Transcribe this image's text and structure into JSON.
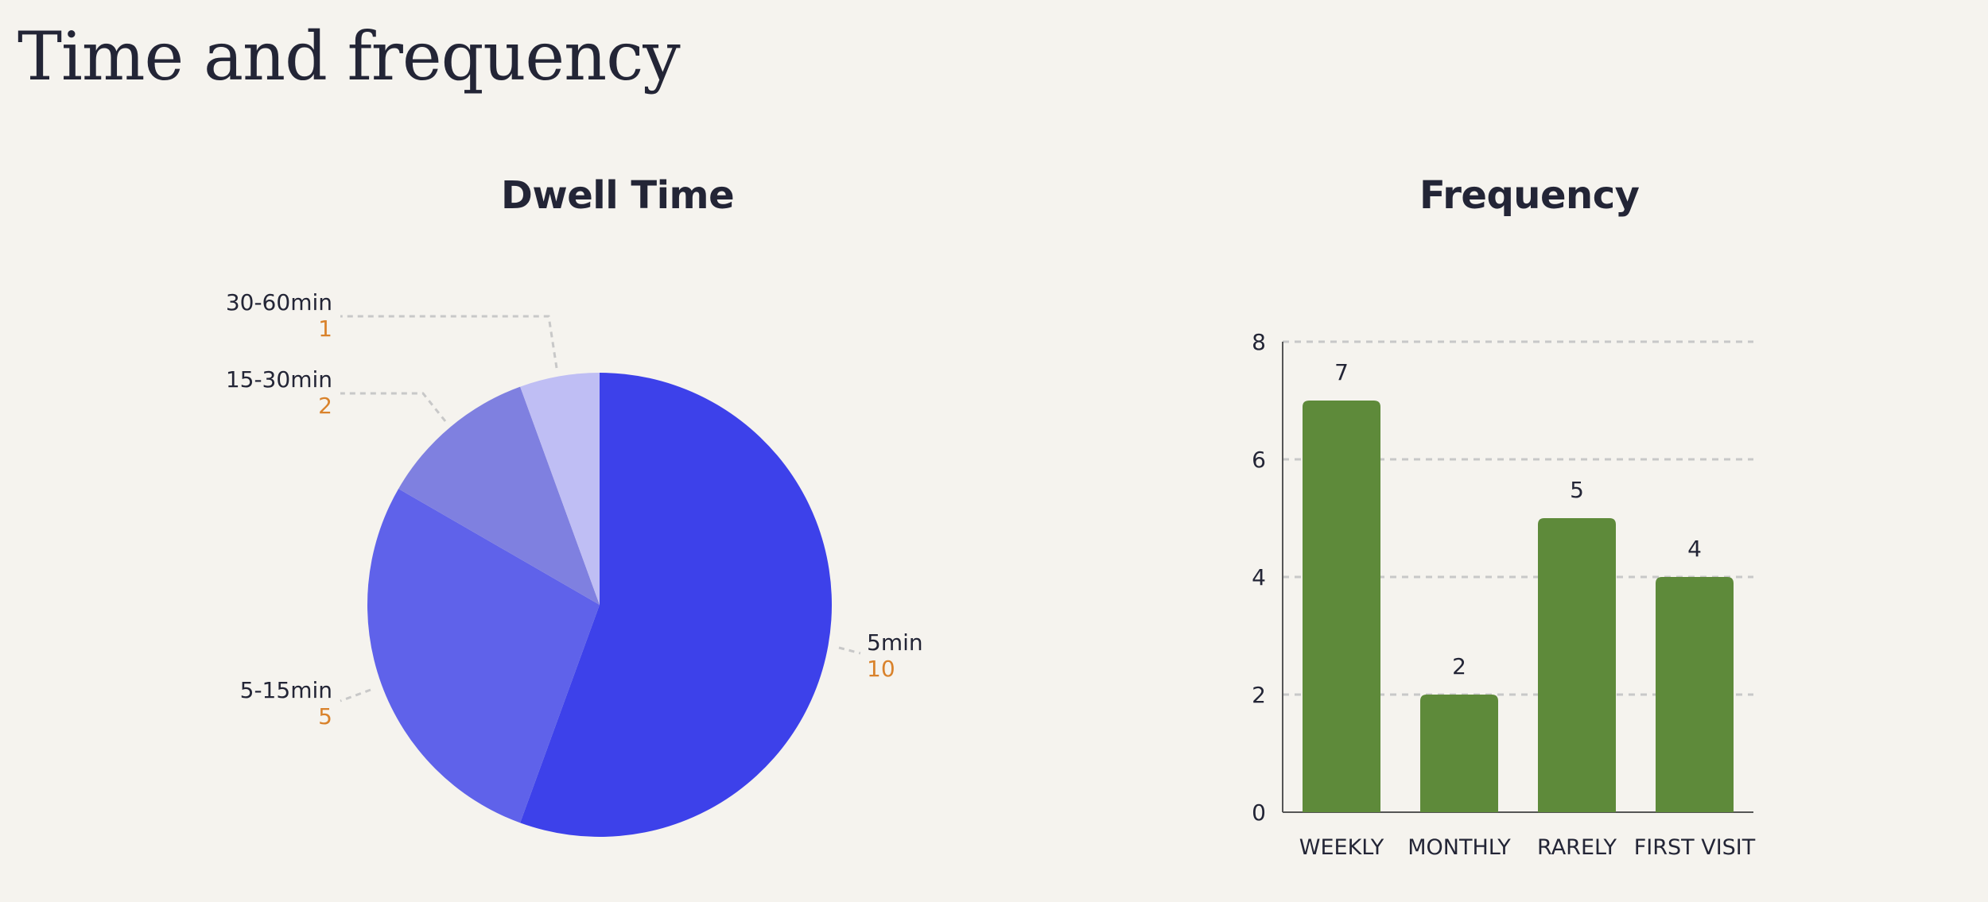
{
  "page": {
    "title": "Time and frequency"
  },
  "chart_data": [
    {
      "type": "pie",
      "title": "Dwell Time",
      "slices": [
        {
          "label": "5min",
          "value": 10,
          "color": "#3d41ea"
        },
        {
          "label": "5-15min",
          "value": 5,
          "color": "#5f62ea"
        },
        {
          "label": "15-30min",
          "value": 2,
          "color": "#7f80e0"
        },
        {
          "label": "30-60min",
          "value": 1,
          "color": "#bfbef4"
        }
      ],
      "value_color": "#d9822b",
      "leader_line_color": "#c8c8c8"
    },
    {
      "type": "bar",
      "title": "Frequency",
      "categories": [
        "WEEKLY",
        "MONTHLY",
        "RARELY",
        "FIRST VISIT"
      ],
      "values": [
        7,
        2,
        5,
        4
      ],
      "ylim": [
        0,
        8
      ],
      "yticks": [
        0,
        2,
        4,
        6,
        8
      ],
      "grid": true,
      "bar_color": "#5e8a3a",
      "gridline_color": "#c8c8c8"
    }
  ]
}
